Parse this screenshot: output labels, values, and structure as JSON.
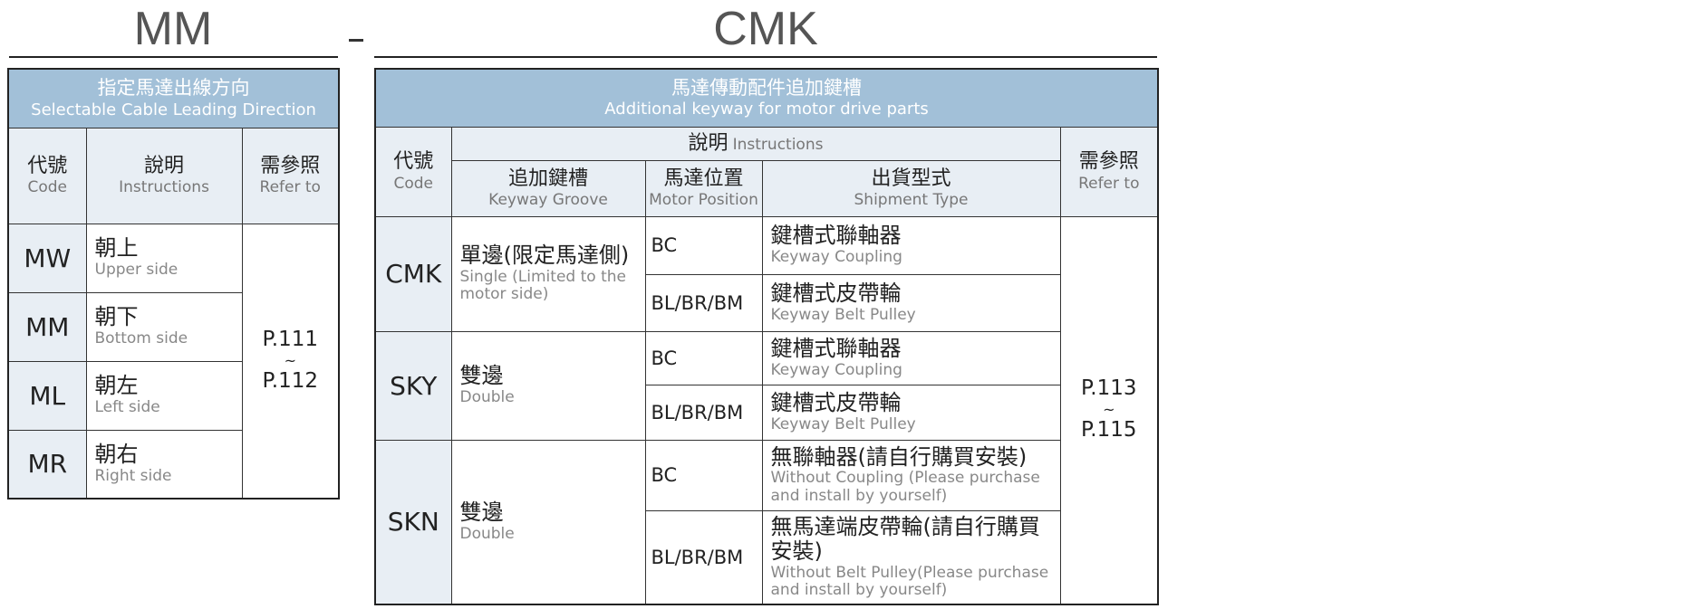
{
  "left": {
    "heading": "MM",
    "title_zh": "指定馬達出線方向",
    "title_en": "Selectable Cable Leading Direction",
    "headers": {
      "code_zh": "代號",
      "code_en": "Code",
      "desc_zh": "說明",
      "desc_en": "Instructions",
      "ref_zh": "需參照",
      "ref_en": "Refer to"
    },
    "rows": [
      {
        "code": "MW",
        "zh": "朝上",
        "en": "Upper side"
      },
      {
        "code": "MM",
        "zh": "朝下",
        "en": "Bottom side"
      },
      {
        "code": "ML",
        "zh": "朝左",
        "en": "Left side"
      },
      {
        "code": "MR",
        "zh": "朝右",
        "en": "Right side"
      }
    ],
    "ref_from": "P.111",
    "ref_tilde": "~",
    "ref_to": "P.112"
  },
  "separator": "-",
  "right": {
    "heading": "CMK",
    "title_zh": "馬達傳動配件追加鍵槽",
    "title_en": "Additional keyway for motor drive parts",
    "headers": {
      "code_zh": "代號",
      "code_en": "Code",
      "desc_zh": "說明",
      "desc_en": "Instructions",
      "groove_zh": "追加鍵槽",
      "groove_en": "Keyway Groove",
      "pos_zh": "馬達位置",
      "pos_en": "Motor Position",
      "ship_zh": "出貨型式",
      "ship_en": "Shipment Type",
      "ref_zh": "需參照",
      "ref_en": "Refer to"
    },
    "groups": [
      {
        "code": "CMK",
        "groove_zh": "單邊(限定馬達側)",
        "groove_en": "Single (Limited to the motor side)",
        "rows": [
          {
            "pos": "BC",
            "zh": "鍵槽式聯軸器",
            "en": "Keyway Coupling"
          },
          {
            "pos": "BL/BR/BM",
            "zh": "鍵槽式皮帶輪",
            "en": "Keyway Belt Pulley"
          }
        ]
      },
      {
        "code": "SKY",
        "groove_zh": "雙邊",
        "groove_en": "Double",
        "rows": [
          {
            "pos": "BC",
            "zh": "鍵槽式聯軸器",
            "en": "Keyway Coupling"
          },
          {
            "pos": "BL/BR/BM",
            "zh": "鍵槽式皮帶輪",
            "en": "Keyway Belt Pulley"
          }
        ]
      },
      {
        "code": "SKN",
        "groove_zh": "雙邊",
        "groove_en": "Double",
        "rows": [
          {
            "pos": "BC",
            "zh": "無聯軸器(請自行購買安裝)",
            "en": "Without Coupling (Please purchase and install by yourself)"
          },
          {
            "pos": "BL/BR/BM",
            "zh": "無馬達端皮帶輪(請自行購買安裝)",
            "en": "Without Belt Pulley(Please purchase and install by yourself)"
          }
        ]
      }
    ],
    "ref_from": "P.113",
    "ref_tilde": "~",
    "ref_to": "P.115"
  }
}
